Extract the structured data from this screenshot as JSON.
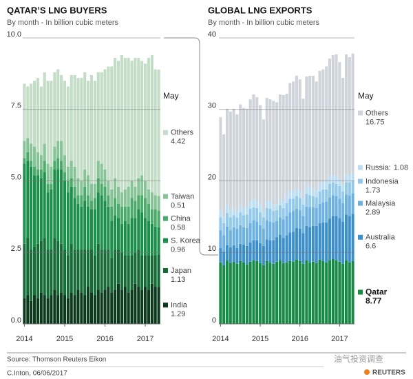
{
  "chart_data": [
    {
      "type": "stacked_bar",
      "title": "QATAR’S LNG BUYERS",
      "subtitle": "By month - In billion cubic meters",
      "legend_title": "May",
      "categories": [
        "2014",
        null,
        null,
        null,
        null,
        null,
        null,
        null,
        null,
        null,
        null,
        null,
        "2015",
        null,
        null,
        null,
        null,
        null,
        null,
        null,
        null,
        null,
        null,
        null,
        "2016",
        null,
        null,
        null,
        null,
        null,
        null,
        null,
        null,
        null,
        null,
        null,
        "2017",
        null,
        null,
        null,
        null
      ],
      "ylim": [
        0,
        10
      ],
      "yticks": [
        {
          "value": 0,
          "label": "0.0"
        },
        2.5,
        {
          "value": 5,
          "label": "5.0"
        },
        7.5,
        {
          "value": 10,
          "label": "10.0"
        }
      ],
      "grid": true,
      "series": [
        {
          "name": "India",
          "color": "#0c3a1d",
          "values": [
            0.9,
            1.0,
            0.8,
            1.0,
            0.9,
            1.1,
            1.0,
            0.9,
            1.0,
            1.2,
            1.0,
            1.1,
            1.0,
            0.9,
            1.1,
            1.0,
            1.2,
            1.1,
            1.0,
            1.3,
            1.1,
            1.0,
            1.2,
            1.1,
            1.2,
            1.3,
            1.1,
            1.2,
            1.4,
            1.2,
            1.3,
            1.1,
            1.2,
            1.4,
            1.3,
            1.2,
            1.3,
            1.2,
            1.4,
            1.3,
            1.29
          ]
        },
        {
          "name": "Japan",
          "color": "#156b35",
          "values": [
            1.9,
            2.0,
            1.8,
            1.7,
            1.9,
            1.8,
            2.0,
            1.7,
            1.6,
            1.8,
            1.9,
            1.7,
            1.6,
            1.5,
            1.7,
            1.6,
            1.4,
            1.5,
            1.6,
            1.3,
            1.5,
            1.4,
            1.6,
            1.5,
            1.4,
            1.3,
            1.2,
            1.4,
            1.2,
            1.3,
            1.1,
            1.3,
            1.2,
            1.1,
            1.3,
            1.2,
            1.1,
            1.2,
            1.0,
            1.1,
            1.13
          ]
        },
        {
          "name": "S. Korea",
          "color": "#1b8f49",
          "values": [
            2.8,
            2.7,
            2.9,
            2.5,
            2.4,
            2.2,
            2.3,
            2.0,
            2.1,
            2.4,
            2.5,
            2.6,
            2.4,
            2.2,
            2.0,
            1.8,
            1.6,
            1.5,
            1.7,
            1.5,
            1.4,
            1.6,
            1.8,
            1.9,
            1.7,
            1.5,
            1.3,
            1.2,
            1.1,
            1.0,
            1.2,
            1.1,
            1.3,
            1.2,
            1.4,
            1.5,
            1.3,
            1.2,
            1.1,
            1.0,
            0.96
          ]
        },
        {
          "name": "China",
          "color": "#4caa6a",
          "values": [
            0.2,
            0.3,
            0.2,
            0.3,
            0.2,
            0.3,
            0.4,
            0.3,
            0.2,
            0.3,
            0.4,
            0.3,
            0.3,
            0.4,
            0.3,
            0.4,
            0.3,
            0.4,
            0.5,
            0.4,
            0.3,
            0.4,
            0.5,
            0.4,
            0.5,
            0.4,
            0.5,
            0.6,
            0.5,
            0.6,
            0.5,
            0.6,
            0.7,
            0.6,
            0.5,
            0.6,
            0.7,
            0.6,
            0.5,
            0.6,
            0.58
          ]
        },
        {
          "name": "Taiwan",
          "color": "#86c396",
          "values": [
            0.6,
            0.5,
            0.6,
            0.7,
            0.6,
            0.5,
            0.6,
            0.7,
            0.6,
            0.5,
            0.6,
            0.7,
            0.6,
            0.5,
            0.6,
            0.7,
            0.6,
            0.5,
            0.6,
            0.7,
            0.6,
            0.5,
            0.6,
            0.7,
            0.6,
            0.5,
            0.6,
            0.7,
            0.6,
            0.5,
            0.6,
            0.7,
            0.6,
            0.5,
            0.6,
            0.7,
            0.6,
            0.5,
            0.6,
            0.5,
            0.51
          ]
        },
        {
          "name": "Others",
          "color": "#c3ddc6",
          "values": [
            2.0,
            1.8,
            2.1,
            2.3,
            2.6,
            2.4,
            2.5,
            2.9,
            3.0,
            2.6,
            2.5,
            2.3,
            2.6,
            2.8,
            3.0,
            3.2,
            3.5,
            3.6,
            3.4,
            3.3,
            3.8,
            3.6,
            3.1,
            3.2,
            3.5,
            4.0,
            4.3,
            4.2,
            4.4,
            4.8,
            4.6,
            4.5,
            4.2,
            4.5,
            4.2,
            4.0,
            4.1,
            4.6,
            4.8,
            4.4,
            4.42
          ]
        }
      ]
    },
    {
      "type": "stacked_bar",
      "title": "GLOBAL LNG EXPORTS",
      "subtitle": "By month - In billion cubic meters",
      "legend_title": "May",
      "categories": [
        "2014",
        null,
        null,
        null,
        null,
        null,
        null,
        null,
        null,
        null,
        null,
        null,
        "2015",
        null,
        null,
        null,
        null,
        null,
        null,
        null,
        null,
        null,
        null,
        null,
        "2016",
        null,
        null,
        null,
        null,
        null,
        null,
        null,
        null,
        null,
        null,
        null,
        "2017",
        null,
        null,
        null,
        null
      ],
      "ylim": [
        0,
        40
      ],
      "yticks": [
        0,
        10,
        20,
        30,
        40
      ],
      "grid": true,
      "series": [
        {
          "name": "Qatar",
          "color": "#178a45",
          "highlight": true,
          "values": [
            8.6,
            8.2,
            8.9,
            8.5,
            8.7,
            8.4,
            8.8,
            8.6,
            8.3,
            8.7,
            8.9,
            8.8,
            8.5,
            8.2,
            8.8,
            8.6,
            8.4,
            8.7,
            8.9,
            8.5,
            8.6,
            8.8,
            8.7,
            9.0,
            8.8,
            8.4,
            8.9,
            8.6,
            8.7,
            8.5,
            9.0,
            8.8,
            8.6,
            8.9,
            9.1,
            8.9,
            8.7,
            8.4,
            8.9,
            8.6,
            8.77
          ]
        },
        {
          "name": "Australia",
          "color": "#3d8fc9",
          "values": [
            2.0,
            1.9,
            2.1,
            2.2,
            2.3,
            2.2,
            2.4,
            2.5,
            2.6,
            2.7,
            2.8,
            2.9,
            2.8,
            2.7,
            3.0,
            3.1,
            3.3,
            3.4,
            3.6,
            3.5,
            3.8,
            4.0,
            4.2,
            4.4,
            4.5,
            4.3,
            4.8,
            4.9,
            5.0,
            5.2,
            5.1,
            5.4,
            5.6,
            5.8,
            6.0,
            6.2,
            6.1,
            5.9,
            6.4,
            6.5,
            6.6
          ]
        },
        {
          "name": "Malaysia",
          "color": "#6cb1e0",
          "values": [
            2.5,
            2.3,
            2.6,
            2.4,
            2.5,
            2.7,
            2.6,
            2.4,
            2.5,
            2.7,
            2.8,
            2.6,
            2.5,
            2.4,
            2.7,
            2.6,
            2.5,
            2.3,
            2.4,
            2.6,
            2.7,
            2.8,
            2.9,
            2.7,
            2.6,
            2.4,
            2.7,
            2.8,
            2.6,
            2.5,
            2.7,
            2.8,
            2.9,
            3.0,
            2.9,
            2.8,
            2.7,
            2.6,
            2.8,
            2.9,
            2.89
          ]
        },
        {
          "name": "Indonesia",
          "color": "#93c9ea",
          "values": [
            1.8,
            1.7,
            1.9,
            1.8,
            1.7,
            1.6,
            1.8,
            1.7,
            1.9,
            2.0,
            1.8,
            1.9,
            1.8,
            1.6,
            1.7,
            1.8,
            1.6,
            1.5,
            1.7,
            1.6,
            1.8,
            1.9,
            1.7,
            1.8,
            1.7,
            1.6,
            1.8,
            1.7,
            1.6,
            1.5,
            1.7,
            1.8,
            1.7,
            1.9,
            1.8,
            1.7,
            1.8,
            1.6,
            1.7,
            1.8,
            1.73
          ]
        },
        {
          "name": "Russia:",
          "color": "#bcdef3",
          "values": [
            1.0,
            0.9,
            1.1,
            1.0,
            0.9,
            0.8,
            0.9,
            1.0,
            1.1,
            1.0,
            1.2,
            1.1,
            1.0,
            0.9,
            1.0,
            1.1,
            0.9,
            0.8,
            0.9,
            1.0,
            1.1,
            1.2,
            1.1,
            1.0,
            1.1,
            0.9,
            1.0,
            1.1,
            1.0,
            0.9,
            1.0,
            1.1,
            1.2,
            1.1,
            1.0,
            1.1,
            1.0,
            0.9,
            1.1,
            1.0,
            1.08
          ]
        },
        {
          "name": "Others",
          "color": "#ced4d9",
          "values": [
            13.0,
            11.5,
            13.5,
            13.8,
            14.0,
            13.6,
            14.2,
            14.0,
            13.7,
            14.3,
            14.6,
            14.4,
            14.0,
            12.8,
            14.4,
            14.2,
            14.5,
            14.3,
            14.6,
            14.8,
            14.2,
            15.0,
            15.3,
            15.8,
            15.5,
            13.9,
            15.4,
            15.6,
            15.8,
            15.3,
            15.9,
            15.7,
            16.0,
            16.4,
            16.8,
            17.0,
            16.3,
            15.0,
            16.8,
            16.5,
            16.75
          ]
        }
      ]
    }
  ],
  "source": "Source: Thomson Reuters Eikon",
  "credit": "C.Inton, 06/06/2017",
  "logo": "REUTERS",
  "watermark": "油气投资调查"
}
